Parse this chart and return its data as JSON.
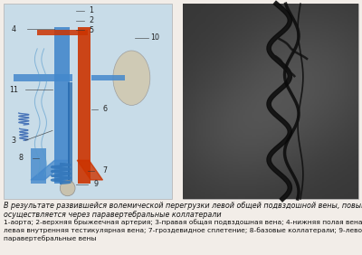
{
  "bg_color": "#f2ede8",
  "border_color": "#b0b0b0",
  "aorta_color": "#cc3300",
  "vein_color": "#4488cc",
  "kidney_color": "#d0c8b0",
  "label_color": "#222222",
  "text_line1": "В результате развившейся волемической перегрузки левой общей подвздошной вены, повышенный приток",
  "text_line2": "осуществляется через паравертебральные коллатерали",
  "text_line3": "1-аорта; 2-верхняя брыжеечная артерия; 3-правая общая подвздошная вена; 4-нижняя полая вена; 5-левая почечная вена; 6-",
  "text_line4": "левая внутренняя тестикулярная вена; 7-гроздевидное сплетение; 8-базовые коллатерали; 9-левое яичко; 10-левая почка; 11-",
  "text_line5": "паравертебральные вены",
  "font_size_main": 5.8,
  "font_size_labels": 5.4
}
